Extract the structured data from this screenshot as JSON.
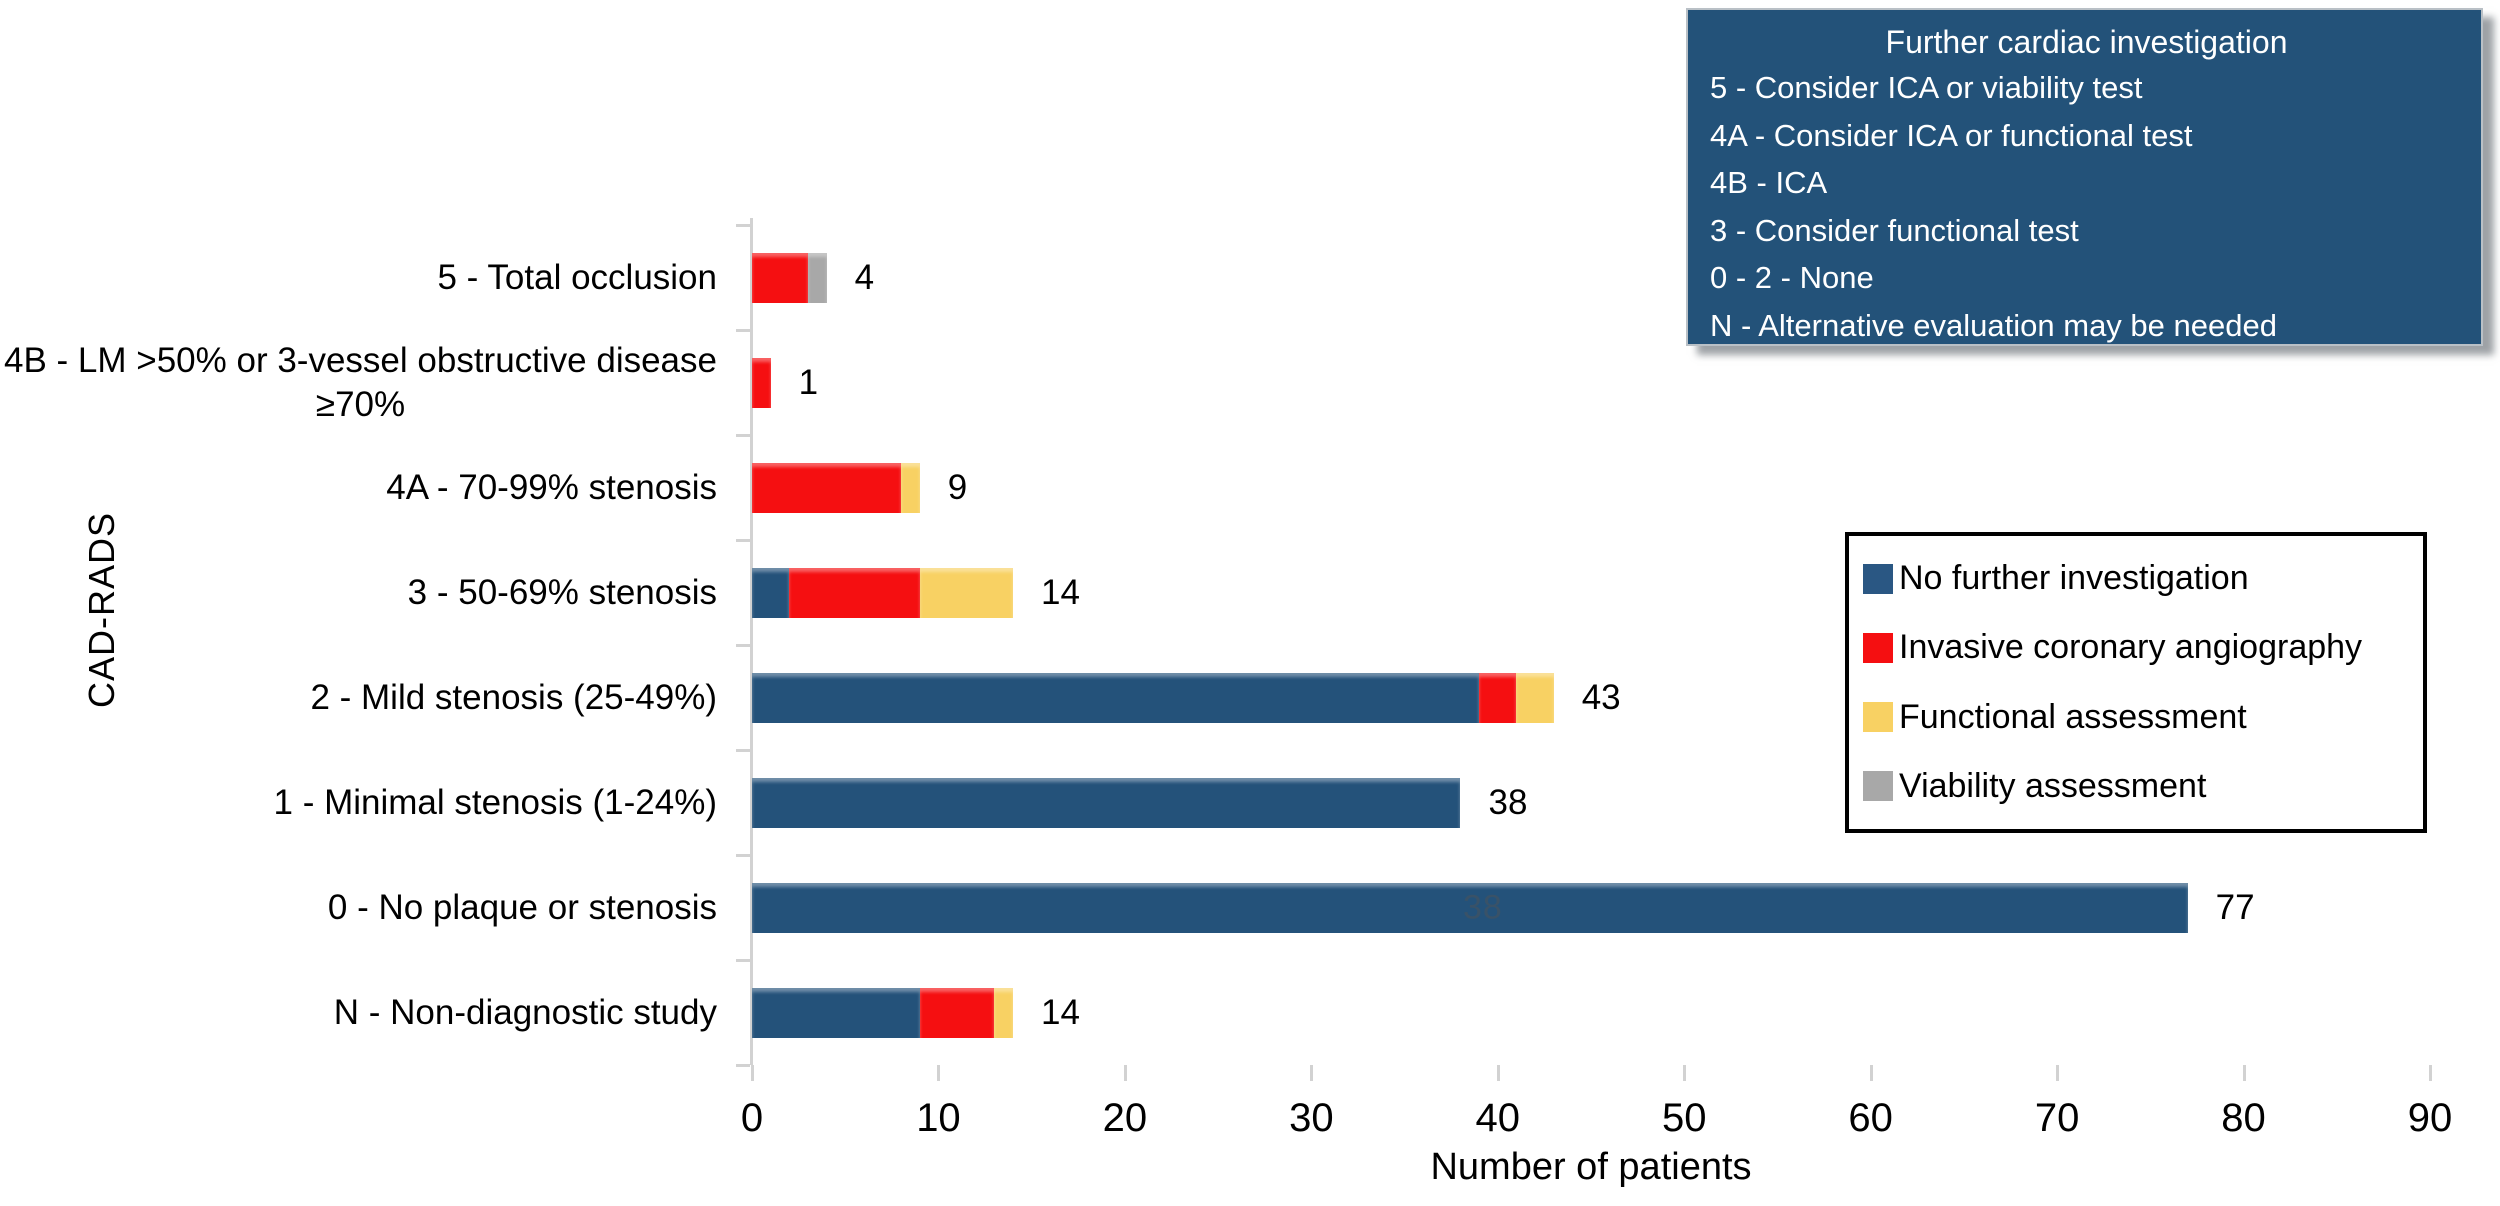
{
  "info_box": {
    "title": "Further cardiac investigation",
    "lines": [
      "5 - Consider ICA or viability test",
      "4A - Consider ICA or functional test",
      "4B - ICA",
      "3 - Consider functional test",
      "0 - 2 - None",
      "N - Alternative evaluation may be needed"
    ],
    "background_color": "#235279"
  },
  "legend": {
    "items": [
      {
        "label": "No further investigation",
        "color": "#2a5783"
      },
      {
        "label": "Invasive coronary angiography",
        "color": "#f50f11"
      },
      {
        "label": "Functional assessment",
        "color": "#f8d163"
      },
      {
        "label": "Viability assessment",
        "color": "#a8a8a8"
      }
    ]
  },
  "chart_data": {
    "type": "bar",
    "orientation": "horizontal",
    "stacked": true,
    "xlabel": "Number of patients",
    "ylabel": "CAD-RADS",
    "xlim": [
      0,
      90
    ],
    "xticks": [
      0,
      10,
      20,
      30,
      40,
      50,
      60,
      70,
      80,
      90
    ],
    "grid": false,
    "legend_position": "right",
    "categories": [
      {
        "label_lines": [
          "5 - Total occlusion"
        ]
      },
      {
        "label_lines": [
          "4B - LM >50% or  3-vessel obstructive disease",
          "≥70%"
        ]
      },
      {
        "label_lines": [
          "4A - 70-99% stenosis"
        ]
      },
      {
        "label_lines": [
          "3 - 50-69% stenosis"
        ]
      },
      {
        "label_lines": [
          "2 - Mild stenosis (25-49%)"
        ]
      },
      {
        "label_lines": [
          "1 - Minimal stenosis (1-24%)"
        ]
      },
      {
        "label_lines": [
          "0 - No plaque or stenosis"
        ]
      },
      {
        "label_lines": [
          "N - Non-diagnostic study"
        ]
      }
    ],
    "series": [
      {
        "name": "No further investigation",
        "color": "#24527a",
        "values": [
          0,
          0,
          0,
          2,
          39,
          38,
          77,
          9
        ]
      },
      {
        "name": "Invasive coronary angiography",
        "color": "#f50f11",
        "values": [
          3,
          1,
          8,
          7,
          2,
          0,
          0,
          4
        ]
      },
      {
        "name": "Functional assessment",
        "color": "#f8d163",
        "values": [
          0,
          0,
          1,
          5,
          2,
          0,
          0,
          1
        ]
      },
      {
        "name": "Viability assessment",
        "color": "#a8a8a8",
        "values": [
          1,
          0,
          0,
          0,
          0,
          0,
          0,
          0
        ]
      }
    ],
    "totals": [
      4,
      1,
      9,
      14,
      43,
      38,
      77,
      14
    ],
    "ghost_label": {
      "text": "38",
      "category_index": 6,
      "at_value": 39.2
    }
  }
}
